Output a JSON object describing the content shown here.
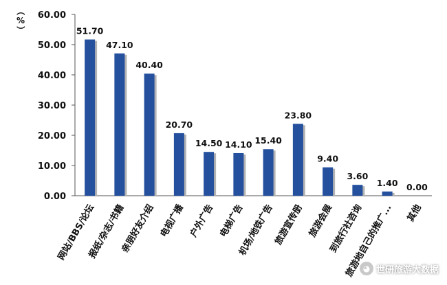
{
  "chart_data": {
    "type": "bar",
    "title": "",
    "xlabel": "",
    "ylabel": "（%）",
    "ylim": [
      0,
      60
    ],
    "yticks": [
      "0.00",
      "10.00",
      "20.00",
      "30.00",
      "40.00",
      "50.00",
      "60.00"
    ],
    "grid": false,
    "bar_color": "#24509e",
    "shadow_color": "#b3b3b3",
    "categories": [
      "网站/BBS/论坛",
      "报纸/杂志/书籍",
      "亲朋好友介绍",
      "电视广播",
      "户外广告",
      "电梯广告",
      "机场/地铁广告",
      "旅游宣传册",
      "旅游会展",
      "到旅行社咨询",
      "旅游地自己的推广...",
      "其他"
    ],
    "values": [
      51.7,
      47.1,
      40.4,
      20.7,
      14.5,
      14.1,
      15.4,
      23.8,
      9.4,
      3.6,
      1.4,
      0.0
    ],
    "data_labels": [
      "51.70",
      "47.10",
      "40.40",
      "20.70",
      "14.50",
      "14.10",
      "15.40",
      "23.80",
      "9.40",
      "3.60",
      "1.40",
      "0.00"
    ]
  },
  "watermark": {
    "text": "世研旅游大数据",
    "icon": "wechat-icon"
  }
}
